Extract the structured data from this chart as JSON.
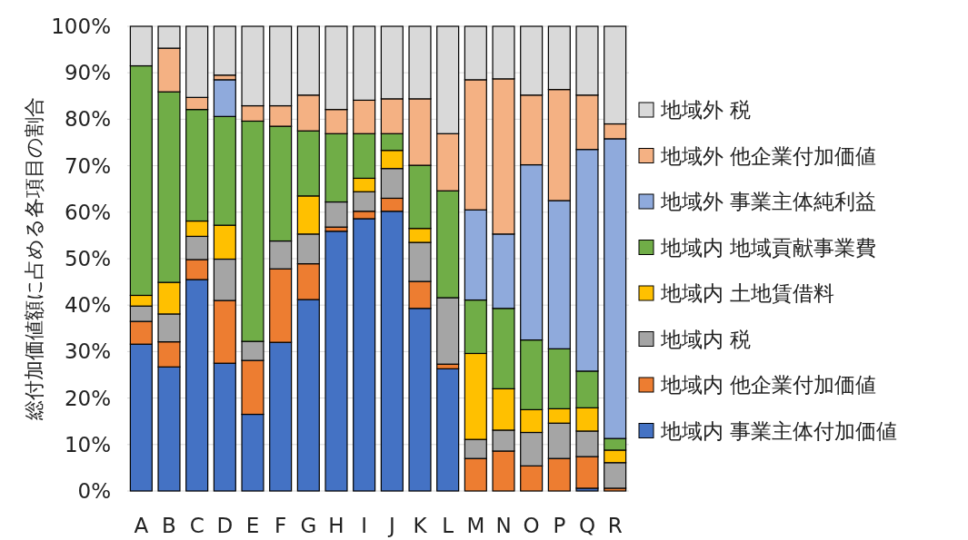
{
  "chart_data": {
    "type": "bar",
    "stacked": true,
    "ylabel": "総付加価値額に占める各項目の割合",
    "categories": [
      "A",
      "B",
      "C",
      "D",
      "E",
      "F",
      "G",
      "H",
      "I",
      "J",
      "K",
      "L",
      "M",
      "N",
      "O",
      "P",
      "Q",
      "R"
    ],
    "ylim": [
      0,
      100
    ],
    "yticks": [
      {
        "value": 0,
        "label": "0%"
      },
      {
        "value": 10,
        "label": "10%"
      },
      {
        "value": 20,
        "label": "20%"
      },
      {
        "value": 30,
        "label": "30%"
      },
      {
        "value": 40,
        "label": "40%"
      },
      {
        "value": 50,
        "label": "50%"
      },
      {
        "value": 60,
        "label": "60%"
      },
      {
        "value": 70,
        "label": "70%"
      },
      {
        "value": 80,
        "label": "80%"
      },
      {
        "value": 90,
        "label": "90%"
      },
      {
        "value": 100,
        "label": "100%"
      }
    ],
    "grid": "y",
    "legend": "right",
    "series": [
      {
        "name": "地域内 事業主体付加価値",
        "color": "#4472c4",
        "values": [
          31.6,
          26.7,
          45.5,
          27.5,
          16.5,
          32.0,
          41.2,
          55.9,
          58.6,
          60.2,
          39.3,
          26.3,
          0,
          0,
          0,
          0,
          0.6,
          0
        ]
      },
      {
        "name": "地域内 他企業付加価値",
        "color": "#ed7d31",
        "values": [
          4.9,
          5.4,
          4.3,
          13.5,
          11.6,
          15.8,
          7.7,
          0.9,
          1.6,
          2.8,
          5.8,
          1.0,
          7.0,
          8.6,
          5.4,
          7.0,
          6.8,
          0.6
        ]
      },
      {
        "name": "地域内 税",
        "color": "#a5a5a5",
        "values": [
          3.3,
          6.0,
          5.0,
          8.9,
          4.1,
          6.0,
          6.4,
          5.4,
          4.2,
          6.4,
          8.4,
          14.3,
          4.1,
          4.5,
          7.2,
          7.6,
          5.5,
          5.5
        ]
      },
      {
        "name": "地域内 土地賃借料",
        "color": "#ffc000",
        "values": [
          2.3,
          6.8,
          3.3,
          7.3,
          0,
          0,
          8.2,
          0,
          2.9,
          3.9,
          3.0,
          0,
          18.5,
          8.9,
          4.9,
          3.1,
          5.0,
          2.7
        ]
      },
      {
        "name": "地域内 地域貢献事業費",
        "color": "#70ad47",
        "values": [
          49.4,
          41.0,
          24.0,
          23.4,
          47.4,
          24.7,
          14.0,
          14.7,
          9.6,
          3.6,
          13.6,
          23.0,
          11.5,
          17.3,
          15.0,
          12.9,
          7.9,
          2.5
        ]
      },
      {
        "name": "地域外 事業主体純利益",
        "color": "#8faadc",
        "values": [
          0,
          0,
          0,
          7.9,
          0,
          0,
          0,
          0,
          0,
          0,
          0,
          0,
          19.4,
          16.0,
          37.7,
          31.9,
          47.7,
          64.5
        ]
      },
      {
        "name": "地域外 他企業付加価値",
        "color": "#f4b183",
        "values": [
          null,
          9.4,
          2.6,
          1.0,
          3.3,
          4.4,
          7.7,
          5.2,
          7.2,
          7.5,
          14.3,
          12.3,
          28.0,
          33.4,
          15.0,
          23.9,
          11.7,
          3.2
        ]
      },
      {
        "name": "地域外 税",
        "color": "#d9d9d9",
        "values": [
          8.5,
          4.7,
          15.3,
          10.5,
          17.1,
          17.1,
          14.8,
          17.9,
          15.9,
          15.6,
          15.6,
          23.1,
          11.5,
          11.3,
          14.8,
          13.6,
          14.8,
          21.0
        ]
      }
    ]
  }
}
